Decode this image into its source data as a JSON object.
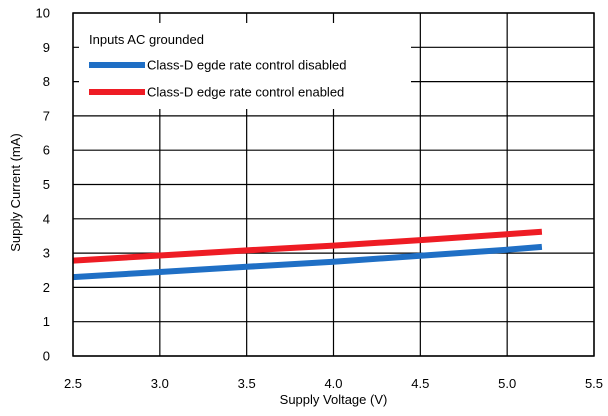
{
  "chart_data": {
    "type": "line",
    "title": "",
    "xlabel": "Supply Voltage (V)",
    "ylabel": "Supply Current (mA)",
    "xlim": [
      2.5,
      5.5
    ],
    "ylim": [
      0,
      10
    ],
    "x_ticks": [
      2.5,
      3.0,
      3.5,
      4.0,
      4.5,
      5.0,
      5.5
    ],
    "x_tick_labels": [
      "2.5",
      "3.0",
      "3.5",
      "4.0",
      "4.5",
      "5.0",
      "5.5"
    ],
    "y_ticks": [
      0,
      1,
      2,
      3,
      4,
      5,
      6,
      7,
      8,
      9,
      10
    ],
    "y_tick_labels": [
      "0",
      "1",
      "2",
      "3",
      "4",
      "5",
      "6",
      "7",
      "8",
      "9",
      "10"
    ],
    "grid": true,
    "legend_title": "Inputs AC grounded",
    "legend_placement": "top-center",
    "series": [
      {
        "name": "Class-D egde rate control disabled",
        "color": "#1f6fc5",
        "x": [
          2.5,
          3.0,
          3.5,
          4.0,
          4.5,
          5.0,
          5.2
        ],
        "y": [
          2.3,
          2.45,
          2.6,
          2.75,
          2.92,
          3.1,
          3.18
        ]
      },
      {
        "name": "Class-D edge rate control enabled",
        "color": "#ee1c24",
        "x": [
          2.5,
          3.0,
          3.5,
          4.0,
          4.5,
          5.0,
          5.2
        ],
        "y": [
          2.78,
          2.93,
          3.08,
          3.22,
          3.38,
          3.55,
          3.62
        ]
      }
    ]
  }
}
